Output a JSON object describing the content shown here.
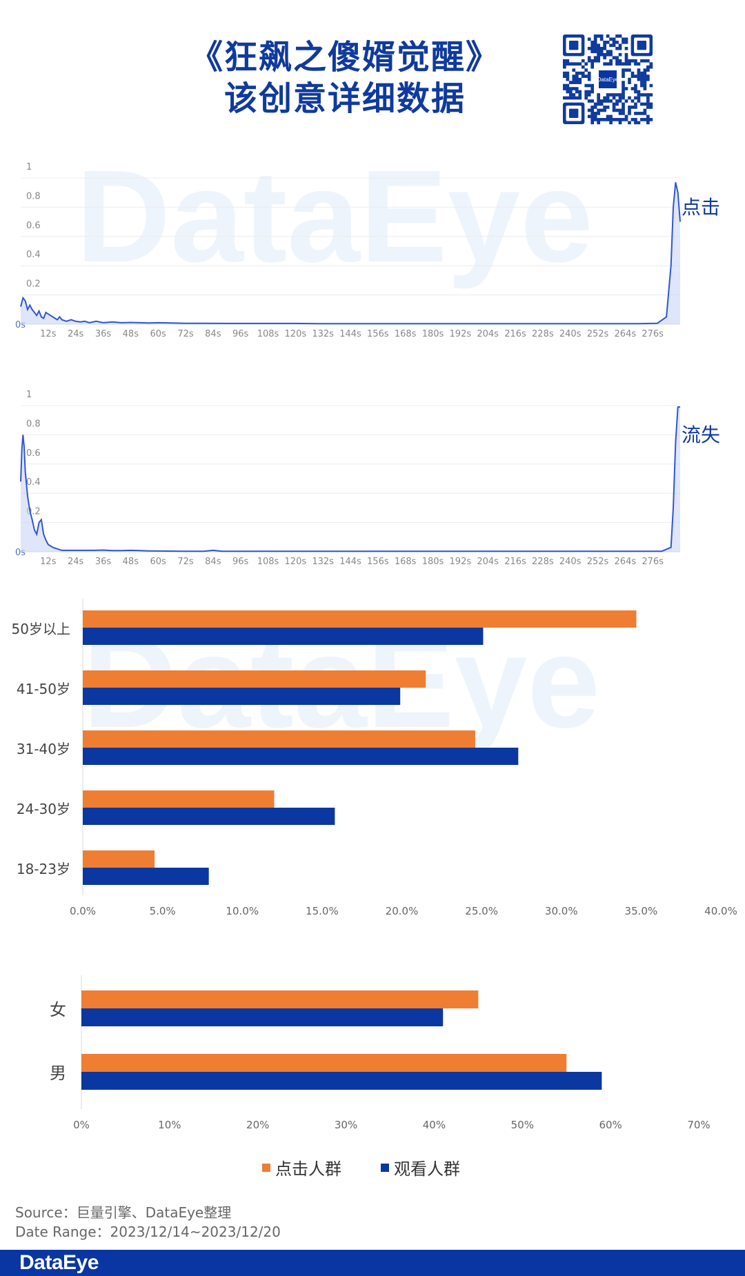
{
  "header": {
    "title_line1": "《狂飙之傻婿觉醒》",
    "title_line2": "该创意详细数据"
  },
  "qr_code": {
    "label": "DataEye"
  },
  "watermark_text": "DataEye",
  "chart_data": [
    {
      "type": "area",
      "series_label": "点击",
      "color": "#2f56d4",
      "ylim": [
        0,
        1
      ],
      "yticks": [
        0.2,
        0.4,
        0.6,
        0.8,
        1
      ],
      "ytick_labels": [
        "0.2",
        "0.4",
        "0.6",
        "0.8",
        "1"
      ],
      "origin_label": "0s",
      "x_max": 288,
      "xticks": [
        "12s",
        "24s",
        "36s",
        "48s",
        "60s",
        "72s",
        "84s",
        "96s",
        "108s",
        "120s",
        "132s",
        "144s",
        "156s",
        "168s",
        "180s",
        "192s",
        "204s",
        "216s",
        "228s",
        "240s",
        "252s",
        "264s",
        "276s"
      ],
      "x": [
        0,
        1,
        2,
        3,
        4,
        5,
        6,
        7,
        8,
        9,
        10,
        11,
        12,
        13,
        14,
        15,
        16,
        17,
        18,
        20,
        22,
        24,
        26,
        28,
        30,
        33,
        36,
        40,
        44,
        48,
        52,
        56,
        60,
        66,
        72,
        80,
        90,
        100,
        110,
        120,
        130,
        140,
        150,
        160,
        170,
        180,
        190,
        200,
        210,
        220,
        230,
        240,
        250,
        260,
        270,
        278,
        282,
        284,
        285,
        286,
        287,
        288
      ],
      "y": [
        0.12,
        0.18,
        0.16,
        0.1,
        0.13,
        0.1,
        0.08,
        0.06,
        0.09,
        0.05,
        0.04,
        0.08,
        0.07,
        0.06,
        0.05,
        0.04,
        0.03,
        0.05,
        0.03,
        0.02,
        0.03,
        0.02,
        0.015,
        0.02,
        0.01,
        0.02,
        0.01,
        0.015,
        0.01,
        0.012,
        0.01,
        0.008,
        0.01,
        0.008,
        0.006,
        0.006,
        0.005,
        0.005,
        0.005,
        0.005,
        0.004,
        0.004,
        0.004,
        0.004,
        0.004,
        0.004,
        0.004,
        0.004,
        0.004,
        0.004,
        0.004,
        0.004,
        0.004,
        0.004,
        0.004,
        0.006,
        0.05,
        0.4,
        0.8,
        0.97,
        0.9,
        0.7
      ]
    },
    {
      "type": "area",
      "series_label": "流失",
      "color": "#2f56d4",
      "ylim": [
        0,
        1
      ],
      "yticks": [
        0.2,
        0.4,
        0.6,
        0.8,
        1
      ],
      "ytick_labels": [
        "0.2",
        "0.4",
        "0.6",
        "0.8",
        "1"
      ],
      "origin_label": "0s",
      "x_max": 288,
      "xticks": [
        "12s",
        "24s",
        "36s",
        "48s",
        "60s",
        "72s",
        "84s",
        "96s",
        "108s",
        "120s",
        "132s",
        "144s",
        "156s",
        "168s",
        "180s",
        "192s",
        "204s",
        "216s",
        "228s",
        "240s",
        "252s",
        "264s",
        "276s"
      ],
      "x": [
        0,
        0.5,
        1,
        1.5,
        2,
        3,
        4,
        5,
        6,
        7,
        8,
        9,
        10,
        11,
        12,
        14,
        16,
        18,
        20,
        24,
        28,
        32,
        36,
        40,
        44,
        48,
        52,
        56,
        60,
        70,
        80,
        84,
        88,
        96,
        100,
        110,
        120,
        140,
        160,
        180,
        200,
        220,
        240,
        260,
        280,
        284,
        285,
        286,
        287,
        288
      ],
      "y": [
        0.48,
        0.7,
        0.8,
        0.72,
        0.55,
        0.38,
        0.28,
        0.22,
        0.15,
        0.12,
        0.2,
        0.22,
        0.12,
        0.08,
        0.05,
        0.03,
        0.02,
        0.01,
        0.01,
        0.01,
        0.01,
        0.01,
        0.012,
        0.008,
        0.008,
        0.01,
        0.008,
        0.006,
        0.005,
        0.004,
        0.004,
        0.01,
        0.004,
        0.004,
        0.004,
        0.004,
        0.004,
        0.004,
        0.004,
        0.004,
        0.004,
        0.004,
        0.004,
        0.004,
        0.004,
        0.03,
        0.3,
        0.75,
        0.99,
        0.99
      ]
    },
    {
      "type": "bar",
      "orientation": "horizontal",
      "categories": [
        "50岁以上",
        "41-50岁",
        "31-40岁",
        "24-30岁",
        "18-23岁"
      ],
      "series": [
        {
          "name": "点击人群",
          "color": "#ef7d32",
          "values": [
            34.7,
            21.5,
            24.6,
            12.0,
            4.5
          ]
        },
        {
          "name": "观看人群",
          "color": "#0b37a0",
          "values": [
            25.1,
            19.9,
            27.3,
            15.8,
            7.9
          ]
        }
      ],
      "xlim": [
        0,
        40
      ],
      "xtick_values": [
        0,
        5,
        10,
        15,
        20,
        25,
        30,
        35,
        40
      ],
      "xtick_labels": [
        "0.0%",
        "5.0%",
        "10.0%",
        "15.0%",
        "20.0%",
        "25.0%",
        "30.0%",
        "35.0%",
        "40.0%"
      ]
    },
    {
      "type": "bar",
      "orientation": "horizontal",
      "categories": [
        "女",
        "男"
      ],
      "series": [
        {
          "name": "点击人群",
          "color": "#ef7d32",
          "values": [
            45,
            55
          ]
        },
        {
          "name": "观看人群",
          "color": "#0b37a0",
          "values": [
            41,
            59
          ]
        }
      ],
      "xlim": [
        0,
        70
      ],
      "xtick_values": [
        0,
        10,
        20,
        30,
        40,
        50,
        60,
        70
      ],
      "xtick_labels": [
        "0%",
        "10%",
        "20%",
        "30%",
        "40%",
        "50%",
        "60%",
        "70%"
      ]
    }
  ],
  "legend": {
    "items": [
      {
        "label": "点击人群",
        "color": "#ef7d32"
      },
      {
        "label": "观看人群",
        "color": "#0b37a0"
      }
    ]
  },
  "footer": {
    "source": "Source：巨量引擎、DataEye整理",
    "date_range": "Date Range：2023/12/14~2023/12/20",
    "logo": "DataEye"
  }
}
